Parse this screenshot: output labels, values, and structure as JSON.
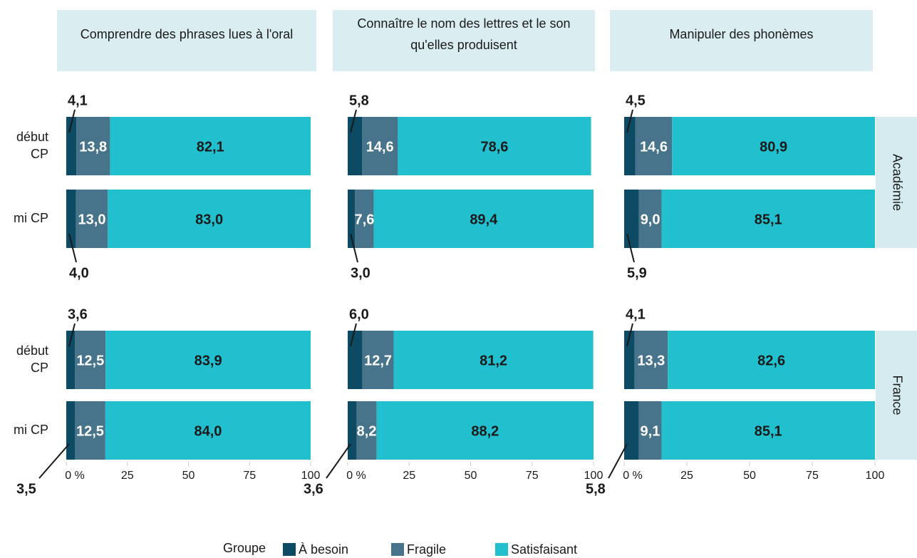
{
  "chart_data": {
    "type": "bar",
    "orientation": "horizontal",
    "stacked": true,
    "columns": [
      "Comprendre des phrases lues à l'oral",
      "Connaître le nom des lettres et le son\nqu'elles produisent",
      "Manipuler des phonèmes"
    ],
    "rows": [
      "Académie",
      "France"
    ],
    "categories": [
      "début\nCP",
      "mi CP"
    ],
    "xlim": [
      0,
      100
    ],
    "xticks": [
      {
        "value": 0,
        "label": "0 %"
      },
      25,
      50,
      75,
      100
    ],
    "legend_title": "Groupe",
    "series": [
      {
        "name": "À besoin",
        "color": "#0d4a63",
        "values": [
          [
            [
              4.1,
              4.0
            ],
            [
              5.8,
              3.0
            ],
            [
              4.5,
              5.9
            ]
          ],
          [
            [
              3.6,
              3.5
            ],
            [
              6.0,
              3.6
            ],
            [
              4.1,
              5.8
            ]
          ]
        ],
        "value_labels": [
          [
            [
              "4,1",
              "4,0"
            ],
            [
              "5,8",
              "3,0"
            ],
            [
              "4,5",
              "5,9"
            ]
          ],
          [
            [
              "3,6",
              "3,5"
            ],
            [
              "6,0",
              "3,6"
            ],
            [
              "4,1",
              "5,8"
            ]
          ]
        ]
      },
      {
        "name": "Fragile",
        "color": "#47748a",
        "values": [
          [
            [
              13.8,
              13.0
            ],
            [
              14.6,
              7.6
            ],
            [
              14.6,
              9.0
            ]
          ],
          [
            [
              12.5,
              12.5
            ],
            [
              12.7,
              8.2
            ],
            [
              13.3,
              9.1
            ]
          ]
        ],
        "value_labels": [
          [
            [
              "13,8",
              "13,0"
            ],
            [
              "14,6",
              "7,6"
            ],
            [
              "14,6",
              "9,0"
            ]
          ],
          [
            [
              "12,5",
              "12,5"
            ],
            [
              "12,7",
              "8,2"
            ],
            [
              "13,3",
              "9,1"
            ]
          ]
        ]
      },
      {
        "name": "Satisfaisant",
        "color": "#22bfcf",
        "values": [
          [
            [
              82.1,
              83.0
            ],
            [
              78.6,
              89.4
            ],
            [
              80.9,
              85.1
            ]
          ],
          [
            [
              83.9,
              84.0
            ],
            [
              81.2,
              88.2
            ],
            [
              82.6,
              85.1
            ]
          ]
        ],
        "value_labels": [
          [
            [
              "82,1",
              "83,0"
            ],
            [
              "78,6",
              "89,4"
            ],
            [
              "80,9",
              "85,1"
            ]
          ],
          [
            [
              "83,9",
              "84,0"
            ],
            [
              "81,2",
              "88,2"
            ],
            [
              "82,6",
              "85,1"
            ]
          ]
        ]
      }
    ]
  }
}
